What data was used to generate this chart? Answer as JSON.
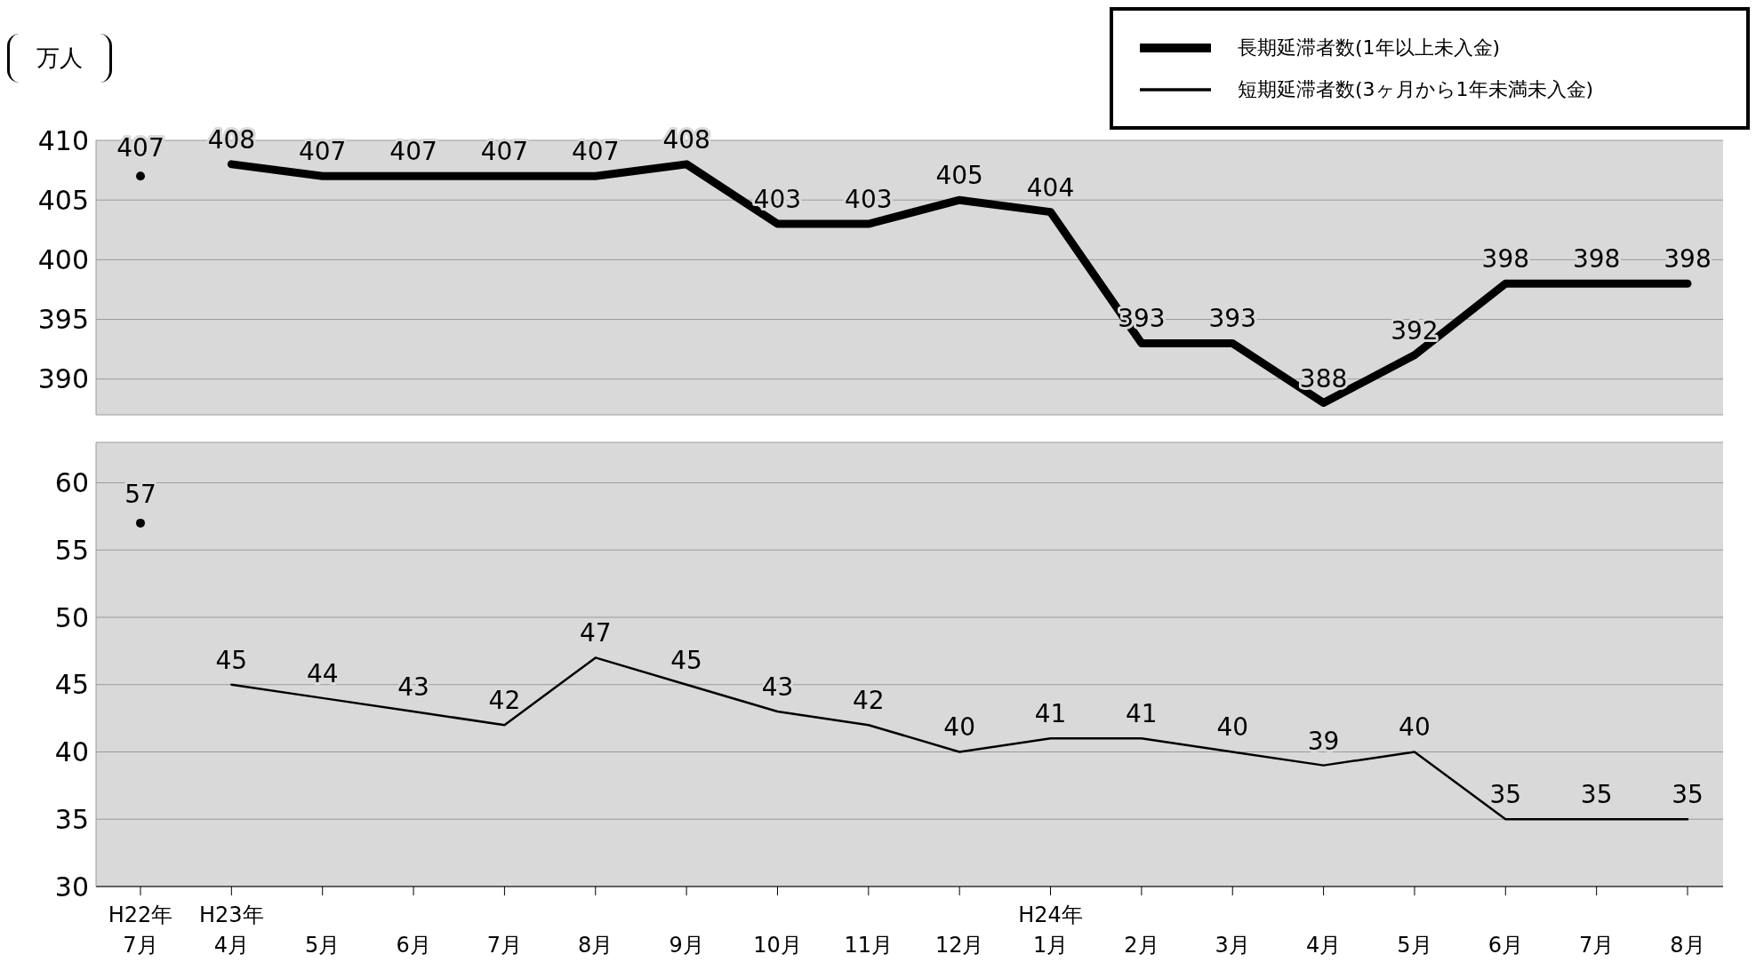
{
  "chart_data": [
    {
      "type": "line",
      "ylabel": "万人",
      "categories": [
        null,
        null,
        null,
        null,
        null,
        null,
        null,
        null,
        null,
        null,
        null,
        null,
        null,
        null,
        null,
        null,
        null,
        null
      ],
      "series": [
        {
          "type": "scatter",
          "color": "#000000",
          "marker": "circle",
          "values": [
            407,
            null,
            null,
            null,
            null,
            null,
            null,
            null,
            null,
            null,
            null,
            null,
            null,
            null,
            null,
            null,
            null,
            null
          ]
        },
        {
          "type": "line",
          "name": "長期延滞者数(1年以上未入金)",
          "color": "#000000",
          "values": [
            null,
            408,
            407,
            407,
            407,
            407,
            408,
            403,
            403,
            405,
            404,
            393,
            393,
            388,
            392,
            398,
            398,
            398
          ]
        }
      ],
      "ylim": [
        387,
        410
      ],
      "yticks": [
        390,
        395,
        400,
        405,
        410
      ],
      "grid": "y",
      "marker": "none",
      "data_labels": true,
      "tick_labels": "y",
      "legend": "top right"
    },
    {
      "type": "line",
      "categories": [
        "H22年\n7月",
        "H23年\n4月",
        "5月",
        "6月",
        "7月",
        "8月",
        "9月",
        "10月",
        "11月",
        "12月",
        "H24年\n1月",
        "2月",
        "3月",
        "4月",
        "5月",
        "6月",
        "7月",
        "8月"
      ],
      "series": [
        {
          "type": "scatter",
          "color": "#000000",
          "marker": "circle",
          "values": [
            57,
            null,
            null,
            null,
            null,
            null,
            null,
            null,
            null,
            null,
            null,
            null,
            null,
            null,
            null,
            null,
            null,
            null
          ]
        },
        {
          "type": "line",
          "name": "短期延滞者数(3ヶ月から1年未満未入金)",
          "color": "#000000",
          "values": [
            null,
            45,
            44,
            43,
            42,
            47,
            45,
            43,
            42,
            40,
            41,
            41,
            40,
            39,
            40,
            35,
            35,
            35
          ]
        }
      ],
      "ylim": [
        30,
        63
      ],
      "yticks": [
        30,
        35,
        40,
        45,
        50,
        55,
        60
      ],
      "grid": "y",
      "marker": "none",
      "data_labels": true,
      "legend": "top right"
    }
  ]
}
